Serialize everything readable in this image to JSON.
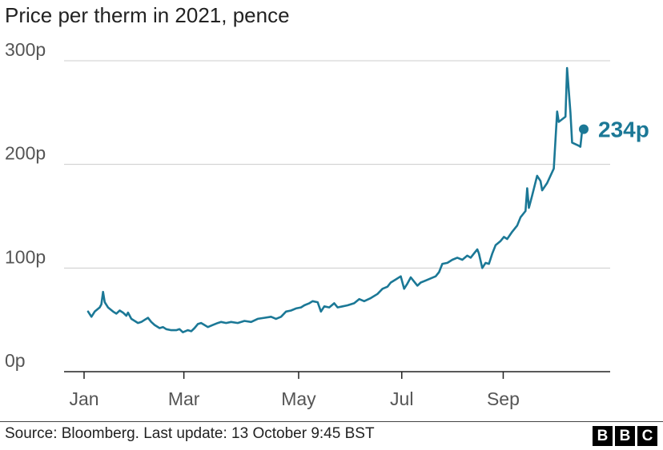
{
  "chart_data": {
    "type": "line",
    "title": "Price per therm in 2021, pence",
    "xlabel": "",
    "ylabel": "",
    "ylim": [
      0,
      300
    ],
    "y_ticks": [
      0,
      100,
      200,
      300
    ],
    "y_tick_labels": [
      "0p",
      "100p",
      "200p",
      "300p"
    ],
    "x_ticks": [
      "Jan",
      "Mar",
      "May",
      "Jul",
      "Sep"
    ],
    "grid": true,
    "series": [
      {
        "name": "Price per therm",
        "color": "#1b7896",
        "points": [
          [
            0,
            58
          ],
          [
            2,
            53
          ],
          [
            4,
            58
          ],
          [
            7,
            62
          ],
          [
            8,
            65
          ],
          [
            9,
            77
          ],
          [
            10,
            67
          ],
          [
            12,
            62
          ],
          [
            15,
            58
          ],
          [
            17,
            56
          ],
          [
            19,
            59
          ],
          [
            21,
            57
          ],
          [
            23,
            54
          ],
          [
            24,
            57
          ],
          [
            26,
            51
          ],
          [
            28,
            49
          ],
          [
            30,
            47
          ],
          [
            32,
            48
          ],
          [
            34,
            50
          ],
          [
            36,
            52
          ],
          [
            38,
            48
          ],
          [
            40,
            45
          ],
          [
            43,
            42
          ],
          [
            45,
            43
          ],
          [
            47,
            41
          ],
          [
            50,
            40
          ],
          [
            53,
            40
          ],
          [
            55,
            41
          ],
          [
            57,
            38
          ],
          [
            60,
            40
          ],
          [
            62,
            39
          ],
          [
            64,
            42
          ],
          [
            66,
            46
          ],
          [
            68,
            47
          ],
          [
            70,
            45
          ],
          [
            72,
            43
          ],
          [
            75,
            45
          ],
          [
            78,
            47
          ],
          [
            80,
            48
          ],
          [
            83,
            47
          ],
          [
            86,
            48
          ],
          [
            90,
            47
          ],
          [
            94,
            49
          ],
          [
            98,
            48
          ],
          [
            102,
            51
          ],
          [
            106,
            52
          ],
          [
            110,
            53
          ],
          [
            113,
            51
          ],
          [
            116,
            53
          ],
          [
            119,
            58
          ],
          [
            122,
            59
          ],
          [
            125,
            61
          ],
          [
            128,
            62
          ],
          [
            130,
            64
          ],
          [
            133,
            66
          ],
          [
            135,
            68
          ],
          [
            138,
            67
          ],
          [
            140,
            58
          ],
          [
            142,
            63
          ],
          [
            145,
            62
          ],
          [
            148,
            66
          ],
          [
            150,
            62
          ],
          [
            153,
            63
          ],
          [
            156,
            64
          ],
          [
            160,
            66
          ],
          [
            163,
            70
          ],
          [
            166,
            68
          ],
          [
            170,
            71
          ],
          [
            174,
            75
          ],
          [
            177,
            80
          ],
          [
            180,
            82
          ],
          [
            182,
            86
          ],
          [
            185,
            89
          ],
          [
            188,
            92
          ],
          [
            190,
            80
          ],
          [
            192,
            85
          ],
          [
            194,
            91
          ],
          [
            196,
            87
          ],
          [
            198,
            83
          ],
          [
            200,
            86
          ],
          [
            203,
            88
          ],
          [
            206,
            90
          ],
          [
            209,
            92
          ],
          [
            211,
            96
          ],
          [
            213,
            104
          ],
          [
            216,
            105
          ],
          [
            219,
            108
          ],
          [
            222,
            110
          ],
          [
            225,
            108
          ],
          [
            228,
            112
          ],
          [
            230,
            110
          ],
          [
            232,
            114
          ],
          [
            234,
            118
          ],
          [
            235,
            114
          ],
          [
            237,
            100
          ],
          [
            239,
            105
          ],
          [
            241,
            104
          ],
          [
            243,
            114
          ],
          [
            245,
            122
          ],
          [
            248,
            126
          ],
          [
            250,
            130
          ],
          [
            252,
            128
          ],
          [
            255,
            135
          ],
          [
            258,
            141
          ],
          [
            260,
            149
          ],
          [
            263,
            155
          ],
          [
            264,
            177
          ],
          [
            265,
            158
          ],
          [
            267,
            170
          ],
          [
            270,
            189
          ],
          [
            272,
            184
          ],
          [
            273,
            175
          ],
          [
            276,
            182
          ],
          [
            280,
            196
          ],
          [
            282,
            251
          ],
          [
            283,
            241
          ],
          [
            287,
            246
          ],
          [
            288,
            293
          ],
          [
            290,
            250
          ],
          [
            291,
            221
          ],
          [
            295,
            218
          ],
          [
            296,
            217
          ],
          [
            297,
            232
          ],
          [
            298,
            234
          ]
        ]
      }
    ],
    "end_label": "234p",
    "end_value": 234
  },
  "source_text": "Source: Bloomberg. Last update: 13 October 9:45 BST",
  "logo_letters": [
    "B",
    "B",
    "C"
  ]
}
